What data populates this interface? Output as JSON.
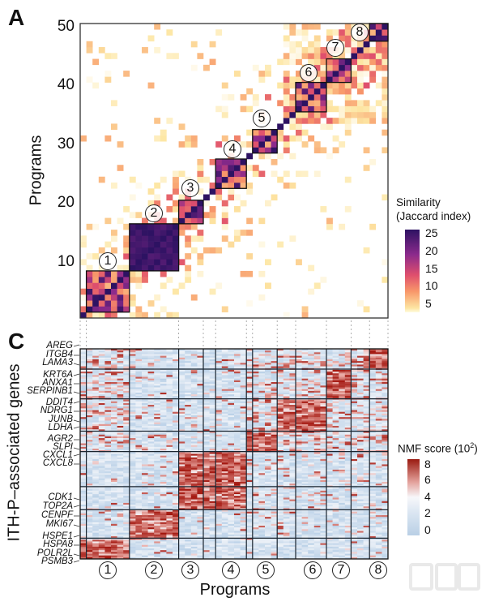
{
  "panels": {
    "a_label": "A",
    "c_label": "C"
  },
  "chart_data": [
    {
      "type": "heatmap",
      "panel": "A",
      "ylabel": "Programs",
      "n_programs": 50,
      "yticks": [
        10,
        20,
        30,
        40,
        50
      ],
      "ytick_labels": [
        "10",
        "20",
        "30",
        "40",
        "50"
      ],
      "color_scale": {
        "title_line1": "Similarity",
        "title_line2": "(Jaccard index)",
        "range": [
          0,
          25
        ],
        "ticks": [
          "25",
          "20",
          "15",
          "10",
          "5"
        ],
        "colors": [
          "#ffffff",
          "#fde6a3",
          "#f8986a",
          "#df4f6d",
          "#8b2a8c",
          "#2d1262"
        ]
      },
      "clusters": [
        {
          "label": "①",
          "programs": [
            2,
            8
          ]
        },
        {
          "label": "②",
          "programs": [
            9,
            16
          ]
        },
        {
          "label": "③",
          "programs": [
            17,
            20
          ]
        },
        {
          "label": "④",
          "programs": [
            23,
            27
          ]
        },
        {
          "label": "⑤",
          "programs": [
            29,
            32
          ]
        },
        {
          "label": "⑥",
          "programs": [
            36,
            40
          ]
        },
        {
          "label": "⑦",
          "programs": [
            41,
            44
          ]
        },
        {
          "label": "⑧",
          "programs": [
            48,
            50
          ]
        }
      ],
      "diagonal_value": 25
    },
    {
      "type": "heatmap",
      "panel": "C",
      "xlabel": "Programs",
      "ylabel": "ITH-P–associated genes",
      "genes": [
        "AREG",
        "ITGB4",
        "LAMA3",
        "KRT6A",
        "ANXA1",
        "SERPINB1",
        "DDIT4",
        "NDRG1",
        "JUNB",
        "LDHA",
        "AGR2",
        "SLPI",
        "CXCL1",
        "CXCL8",
        "CDK1",
        "TOP2A",
        "CENPF",
        "MKI67",
        "HSPE1",
        "HSPA8",
        "POLR2L",
        "PSMB3"
      ],
      "xtick_labels": [
        "①",
        "②",
        "③",
        "④",
        "⑤",
        "⑥",
        "⑦",
        "⑧"
      ],
      "gene_module_high_in_cluster": [
        "⑧",
        "⑦",
        "⑥",
        "⑤",
        "③④",
        "③④",
        "②",
        "①"
      ],
      "color_scale": {
        "title": "NMF score (10",
        "title_sup": "2",
        "title_end": ")",
        "range": [
          0,
          8
        ],
        "ticks": [
          "8",
          "6",
          "4",
          "2",
          "0"
        ],
        "colors": [
          "#bcd2e8",
          "#f4f6fa",
          "#e9a6a0",
          "#a3160e"
        ]
      }
    }
  ],
  "watermark": "뉴시스"
}
